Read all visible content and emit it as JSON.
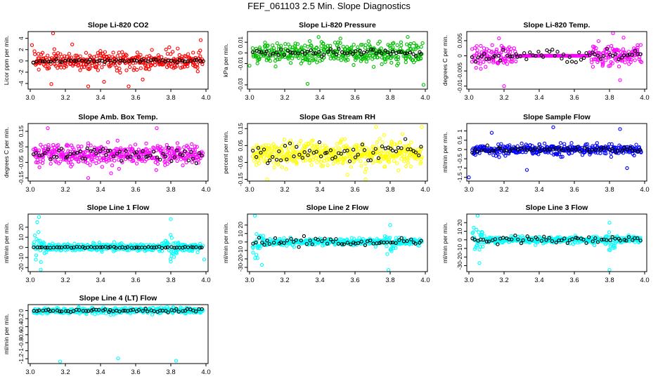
{
  "title": "FEF_061103  2.5 Min. Slope Diagnostics",
  "chart_data": [
    {
      "type": "scatter",
      "title": "Slope Li-820 CO2",
      "ylabel": "Licor ppm per min.",
      "xlim": [
        3.0,
        4.0
      ],
      "ylim": [
        -5,
        5.2
      ],
      "xticks": [
        "3.0",
        "3.2",
        "3.4",
        "3.6",
        "3.8",
        "4.0"
      ],
      "yticks": [
        -4,
        -2,
        0,
        2,
        4
      ],
      "grid": false,
      "series": [
        {
          "color": "#ff0000",
          "count": 360,
          "spread": 1.3,
          "outliers": [
            [
              3.01,
              2.8
            ],
            [
              3.13,
              4.9
            ],
            [
              3.12,
              -4.1
            ],
            [
              3.33,
              -4.5
            ],
            [
              3.42,
              -3.7
            ],
            [
              3.56,
              -4.5
            ],
            [
              3.64,
              -3.3
            ],
            [
              3.97,
              3.7
            ]
          ]
        },
        {
          "color": "#000000",
          "count": 60,
          "spread": 0.25
        }
      ]
    },
    {
      "type": "scatter",
      "title": "Slope Li-820 Pressure",
      "ylabel": "kPa per min.",
      "xlim": [
        3.0,
        4.0
      ],
      "ylim": [
        -0.034,
        0.02
      ],
      "xticks": [
        "3.0",
        "3.2",
        "3.4",
        "3.6",
        "3.8",
        "4.0"
      ],
      "yticks": [
        -0.03,
        -0.01,
        0.0,
        0.01
      ],
      "grid": false,
      "series": [
        {
          "color": "#00c000",
          "count": 380,
          "spread": 0.009,
          "outliers": [
            [
              3.33,
              -0.029
            ],
            [
              3.99,
              -0.03
            ],
            [
              3.0,
              -0.012
            ],
            [
              3.9,
              0.015
            ]
          ]
        },
        {
          "color": "#000000",
          "count": 60,
          "spread": 0.003
        }
      ]
    },
    {
      "type": "scatter",
      "title": "Slope Li-820 Temp.",
      "ylabel": "degrees C per min.",
      "xlim": [
        3.0,
        4.0
      ],
      "ylim": [
        -0.011,
        0.008
      ],
      "xticks": [
        "3.0",
        "3.2",
        "3.4",
        "3.6",
        "3.8",
        "4.0"
      ],
      "yticks": [
        -0.01,
        -0.005,
        0.0,
        0.005
      ],
      "grid": false,
      "series": [
        {
          "color": "#ff00ff",
          "count": 380,
          "spread": 0.003,
          "quiet": [
            3.27,
            3.68
          ],
          "outliers": [
            [
              3.2,
              -0.01
            ],
            [
              3.82,
              0.0075
            ],
            [
              3.88,
              0.006
            ],
            [
              3.86,
              -0.008
            ]
          ]
        },
        {
          "color": "#000000",
          "count": 60,
          "spread": 0.0015
        }
      ]
    },
    {
      "type": "scatter",
      "title": "Slope Amb. Box Temp.",
      "ylabel": "degrees C per min.",
      "xlim": [
        3.0,
        4.0
      ],
      "ylim": [
        -0.17,
        0.2
      ],
      "xticks": [
        "3.0",
        "3.2",
        "3.4",
        "3.6",
        "3.8",
        "4.0"
      ],
      "yticks": [
        -0.15,
        -0.05,
        0.05,
        0.15
      ],
      "grid": false,
      "series": [
        {
          "color": "#ff00ff",
          "count": 420,
          "spread": 0.055,
          "outliers": [
            [
              3.33,
              -0.15
            ],
            [
              3.46,
              -0.12
            ],
            [
              3.72,
              0.17
            ],
            [
              3.1,
              0.17
            ]
          ]
        },
        {
          "color": "#000000",
          "count": 60,
          "spread": 0.04
        }
      ]
    },
    {
      "type": "scatter",
      "title": "Slope Gas Stream RH",
      "ylabel": "percent per min.",
      "xlim": [
        3.0,
        4.0
      ],
      "ylim": [
        -0.16,
        0.18
      ],
      "xticks": [
        "3.0",
        "3.2",
        "3.4",
        "3.6",
        "3.8",
        "4.0"
      ],
      "yticks": [
        -0.15,
        -0.05,
        0.05,
        0.15
      ],
      "grid": false,
      "series": [
        {
          "color": "#ffff00",
          "count": 460,
          "spread": 0.06,
          "outliers": [
            [
              3.1,
              -0.15
            ],
            [
              3.66,
              -0.15
            ],
            [
              3.72,
              0.16
            ],
            [
              3.98,
              0.16
            ]
          ]
        },
        {
          "color": "#000000",
          "count": 60,
          "spread": 0.05
        }
      ]
    },
    {
      "type": "scatter",
      "title": "Slope Sample Flow",
      "ylabel": "ml/min per min.",
      "xlim": [
        3.0,
        4.0
      ],
      "ylim": [
        -1.7,
        1.4
      ],
      "xticks": [
        "3.0",
        "3.2",
        "3.4",
        "3.6",
        "3.8",
        "4.0"
      ],
      "yticks": [
        -1.5,
        -1.0,
        -0.5,
        0.0,
        0.5,
        1.0
      ],
      "grid": false,
      "series": [
        {
          "color": "#0000ff",
          "count": 380,
          "spread": 0.25,
          "outliers": [
            [
              3.0,
              -1.5
            ],
            [
              3.33,
              -1.1
            ],
            [
              3.48,
              1.2
            ],
            [
              3.86,
              1.1
            ],
            [
              3.9,
              -1.0
            ],
            [
              3.13,
              0.9
            ]
          ]
        },
        {
          "color": "#000000",
          "count": 60,
          "spread": 0.15
        }
      ]
    },
    {
      "type": "scatter",
      "title": "Slope Line 1 Flow",
      "ylabel": "ml/min per min.",
      "xlim": [
        3.0,
        4.0
      ],
      "ylim": [
        -24,
        33
      ],
      "xticks": [
        "3.0",
        "3.2",
        "3.4",
        "3.6",
        "3.8",
        "4.0"
      ],
      "yticks": [
        -20,
        -10,
        0,
        10,
        20
      ],
      "grid": false,
      "series": [
        {
          "color": "#00ffff",
          "count": 400,
          "spread": 3,
          "bursts": [
            [
              3.05,
              12
            ],
            [
              3.8,
              12
            ]
          ],
          "outliers": [
            [
              3.05,
              30
            ],
            [
              3.04,
              25
            ],
            [
              3.8,
              28
            ],
            [
              3.06,
              -22
            ],
            [
              3.8,
              -14
            ],
            [
              3.99,
              -12
            ]
          ]
        },
        {
          "color": "#000000",
          "count": 60,
          "spread": 0.5
        }
      ]
    },
    {
      "type": "scatter",
      "title": "Slope Line 2 Flow",
      "ylabel": "ml/min per min.",
      "xlim": [
        3.0,
        4.0
      ],
      "ylim": [
        -35,
        33
      ],
      "xticks": [
        "3.0",
        "3.2",
        "3.4",
        "3.6",
        "3.8",
        "4.0"
      ],
      "yticks": [
        -30,
        -20,
        -10,
        0,
        10,
        20
      ],
      "grid": false,
      "series": [
        {
          "color": "#00ffff",
          "count": 400,
          "spread": 3,
          "bursts": [
            [
              3.04,
              12
            ],
            [
              3.8,
              12
            ]
          ],
          "outliers": [
            [
              3.03,
              31
            ],
            [
              3.79,
              -33
            ],
            [
              3.8,
              20
            ],
            [
              3.07,
              -27
            ]
          ]
        },
        {
          "color": "#000000",
          "count": 60,
          "spread": 4
        }
      ]
    },
    {
      "type": "scatter",
      "title": "Slope Line 3 Flow",
      "ylabel": "ml/min per min.",
      "xlim": [
        3.0,
        4.0
      ],
      "ylim": [
        -37,
        30
      ],
      "xticks": [
        "3.0",
        "3.2",
        "3.4",
        "3.6",
        "3.8",
        "4.0"
      ],
      "yticks": [
        -30,
        -20,
        -10,
        0,
        10,
        20
      ],
      "grid": false,
      "series": [
        {
          "color": "#00ffff",
          "count": 400,
          "spread": 3,
          "bursts": [
            [
              3.05,
              14
            ],
            [
              3.8,
              14
            ]
          ],
          "outliers": [
            [
              3.05,
              28
            ],
            [
              3.8,
              -35
            ],
            [
              3.8,
              20
            ],
            [
              3.06,
              -27
            ]
          ]
        },
        {
          "color": "#000000",
          "count": 60,
          "spread": 4
        }
      ]
    },
    {
      "type": "scatter",
      "title": "Slope Line 4 (LT) Flow",
      "ylabel": "ml/min per min.",
      "xlim": [
        3.0,
        4.0
      ],
      "ylim": [
        -1.32,
        0.15
      ],
      "xticks": [
        "3.0",
        "3.2",
        "3.4",
        "3.6",
        "3.8",
        "4.0"
      ],
      "yticks": [
        -1.2,
        -1.0,
        -0.8,
        -0.6,
        -0.4,
        -0.2,
        0.0
      ],
      "grid": false,
      "series": [
        {
          "color": "#00ffff",
          "count": 380,
          "spread": 0.06,
          "outliers": [
            [
              3.17,
              -1.27
            ],
            [
              3.5,
              -1.19
            ],
            [
              3.83,
              -1.25
            ]
          ]
        },
        {
          "color": "#000000",
          "count": 60,
          "spread": 0.04
        }
      ]
    }
  ]
}
